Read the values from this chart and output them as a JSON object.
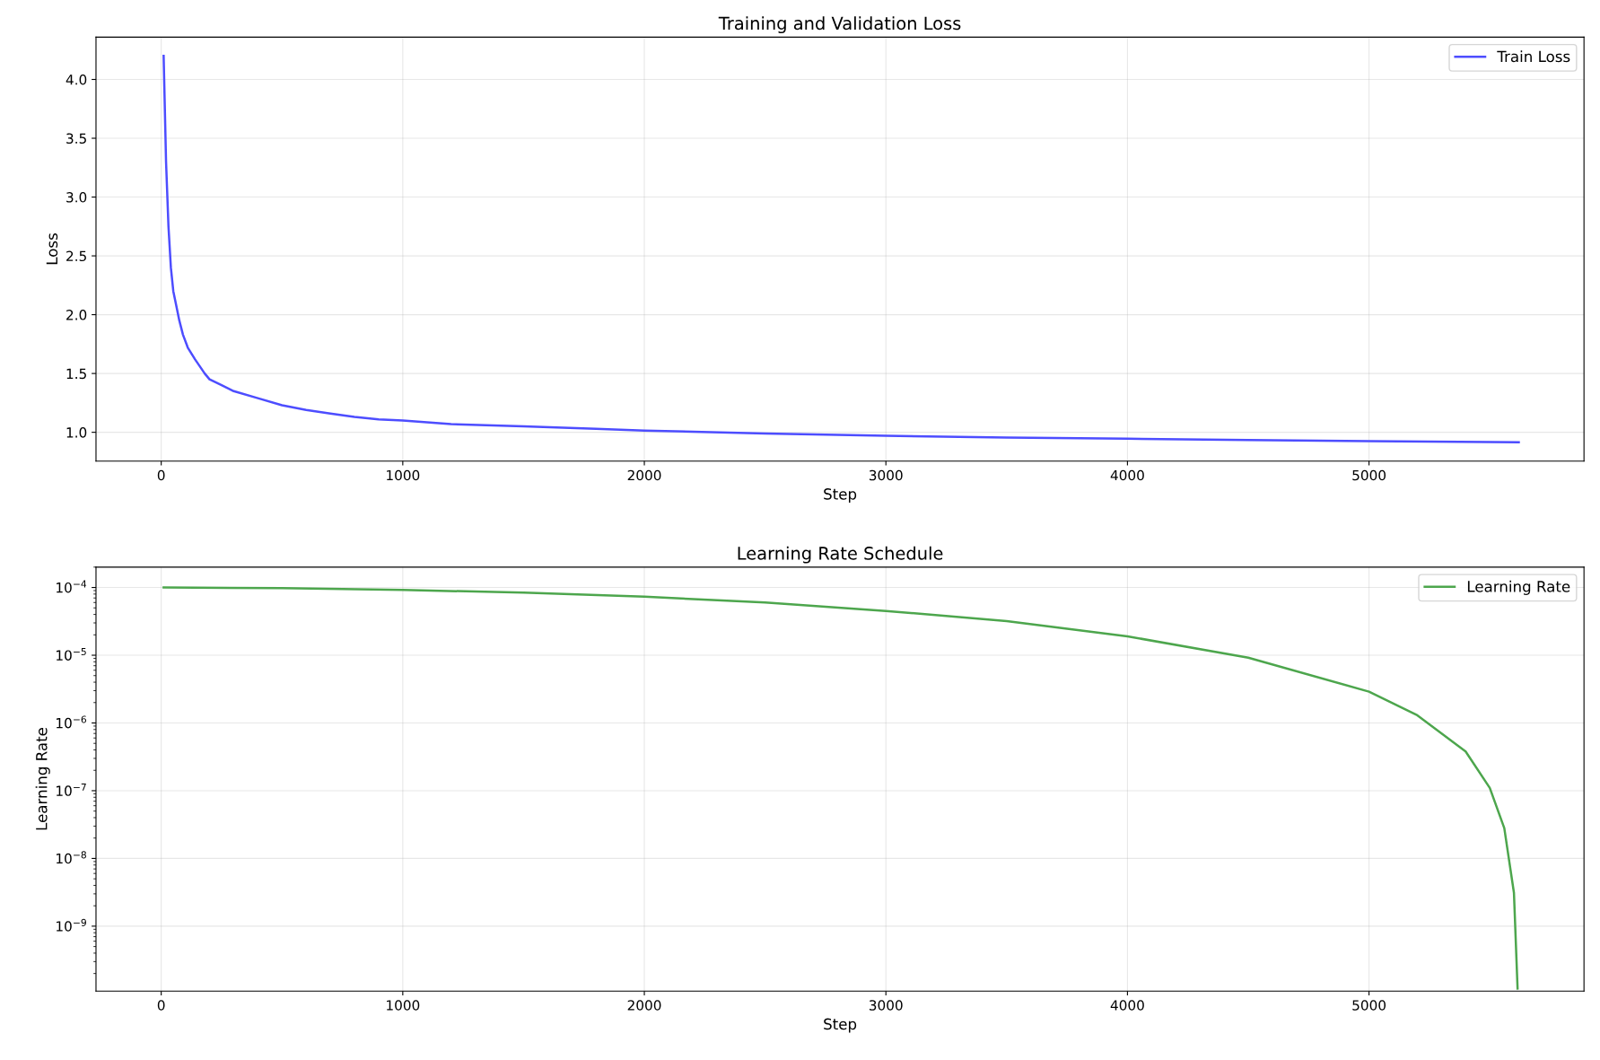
{
  "chart_data": [
    {
      "type": "line",
      "title": "Training and Validation Loss",
      "xlabel": "Step",
      "ylabel": "Loss",
      "x": [
        10,
        20,
        30,
        40,
        50,
        60,
        75,
        90,
        110,
        140,
        180,
        200,
        250,
        300,
        400,
        500,
        600,
        700,
        800,
        900,
        1000,
        1200,
        1500,
        1800,
        2000,
        2500,
        3000,
        3500,
        4000,
        4500,
        5000,
        5620
      ],
      "series": [
        {
          "name": "Train Loss",
          "color": "#4d4dff",
          "values": [
            4.2,
            3.3,
            2.75,
            2.4,
            2.2,
            2.1,
            1.95,
            1.83,
            1.72,
            1.62,
            1.5,
            1.45,
            1.4,
            1.35,
            1.29,
            1.23,
            1.19,
            1.16,
            1.13,
            1.11,
            1.1,
            1.07,
            1.05,
            1.03,
            1.015,
            0.99,
            0.97,
            0.955,
            0.945,
            0.935,
            0.925,
            0.915
          ]
        }
      ],
      "xlim": [
        -270,
        5890
      ],
      "xticks": [
        0,
        1000,
        2000,
        3000,
        4000,
        5000
      ],
      "ylim": [
        0.755,
        4.36
      ],
      "yticks": [
        {
          "value": 1,
          "label": "1.0"
        },
        1.5,
        {
          "value": 2,
          "label": "2.0"
        },
        2.5,
        {
          "value": 3,
          "label": "3.0"
        },
        3.5,
        {
          "value": 4,
          "label": "4.0"
        }
      ],
      "grid": true,
      "legend": "top right"
    },
    {
      "type": "line",
      "title": "Learning Rate Schedule",
      "xlabel": "Step",
      "ylabel": "Learning Rate",
      "log": "y",
      "x": [
        10,
        500,
        1000,
        1500,
        2000,
        2500,
        3000,
        3500,
        4000,
        4500,
        5000,
        5200,
        5400,
        5500,
        5560,
        5600,
        5615
      ],
      "series": [
        {
          "name": "Learning Rate",
          "color": "#4da64d",
          "values": [
            0.0001,
            9.8e-05,
            9.2e-05,
            8.4e-05,
            7.3e-05,
            6e-05,
            4.5e-05,
            3.2e-05,
            1.9e-05,
            9.2e-06,
            2.9e-06,
            1.3e-06,
            3.8e-07,
            1.1e-07,
            2.8e-08,
            3.1e-09,
            1.2e-10
          ]
        }
      ],
      "xlim": [
        -270,
        5890
      ],
      "xticks": [
        0,
        1000,
        2000,
        3000,
        4000,
        5000
      ],
      "ylim": [
        1.1e-10,
        0.0002
      ],
      "yticks": [
        {
          "value": 1e-09,
          "label": "10$^{−9}$"
        },
        {
          "value": 1e-08,
          "label": "10$^{−8}$"
        },
        {
          "value": 1e-07,
          "label": "10$^{−7}$"
        },
        {
          "value": 1e-06,
          "label": "10$^{−6}$"
        },
        {
          "value": 1e-05,
          "label": "10$^{−5}$"
        },
        {
          "value": 0.0001,
          "label": "10$^{−4}$"
        }
      ],
      "grid": true,
      "legend": "top right"
    }
  ]
}
